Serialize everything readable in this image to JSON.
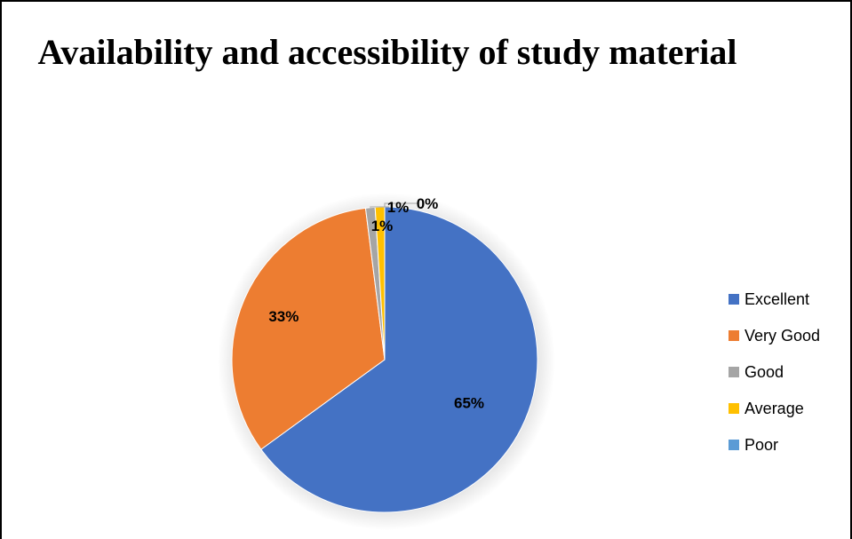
{
  "chart_data": {
    "type": "pie",
    "title": "Availability and accessibility of study material",
    "categories": [
      "Excellent",
      "Very Good",
      "Good",
      "Average",
      "Poor"
    ],
    "values": [
      65,
      33,
      1,
      1,
      0
    ],
    "data_labels": [
      "65%",
      "33%",
      "1%",
      "1%",
      "0%"
    ],
    "colors": [
      "#4472C4",
      "#ED7D31",
      "#A5A5A5",
      "#FFC000",
      "#5B9BD5"
    ],
    "legend": "right"
  }
}
